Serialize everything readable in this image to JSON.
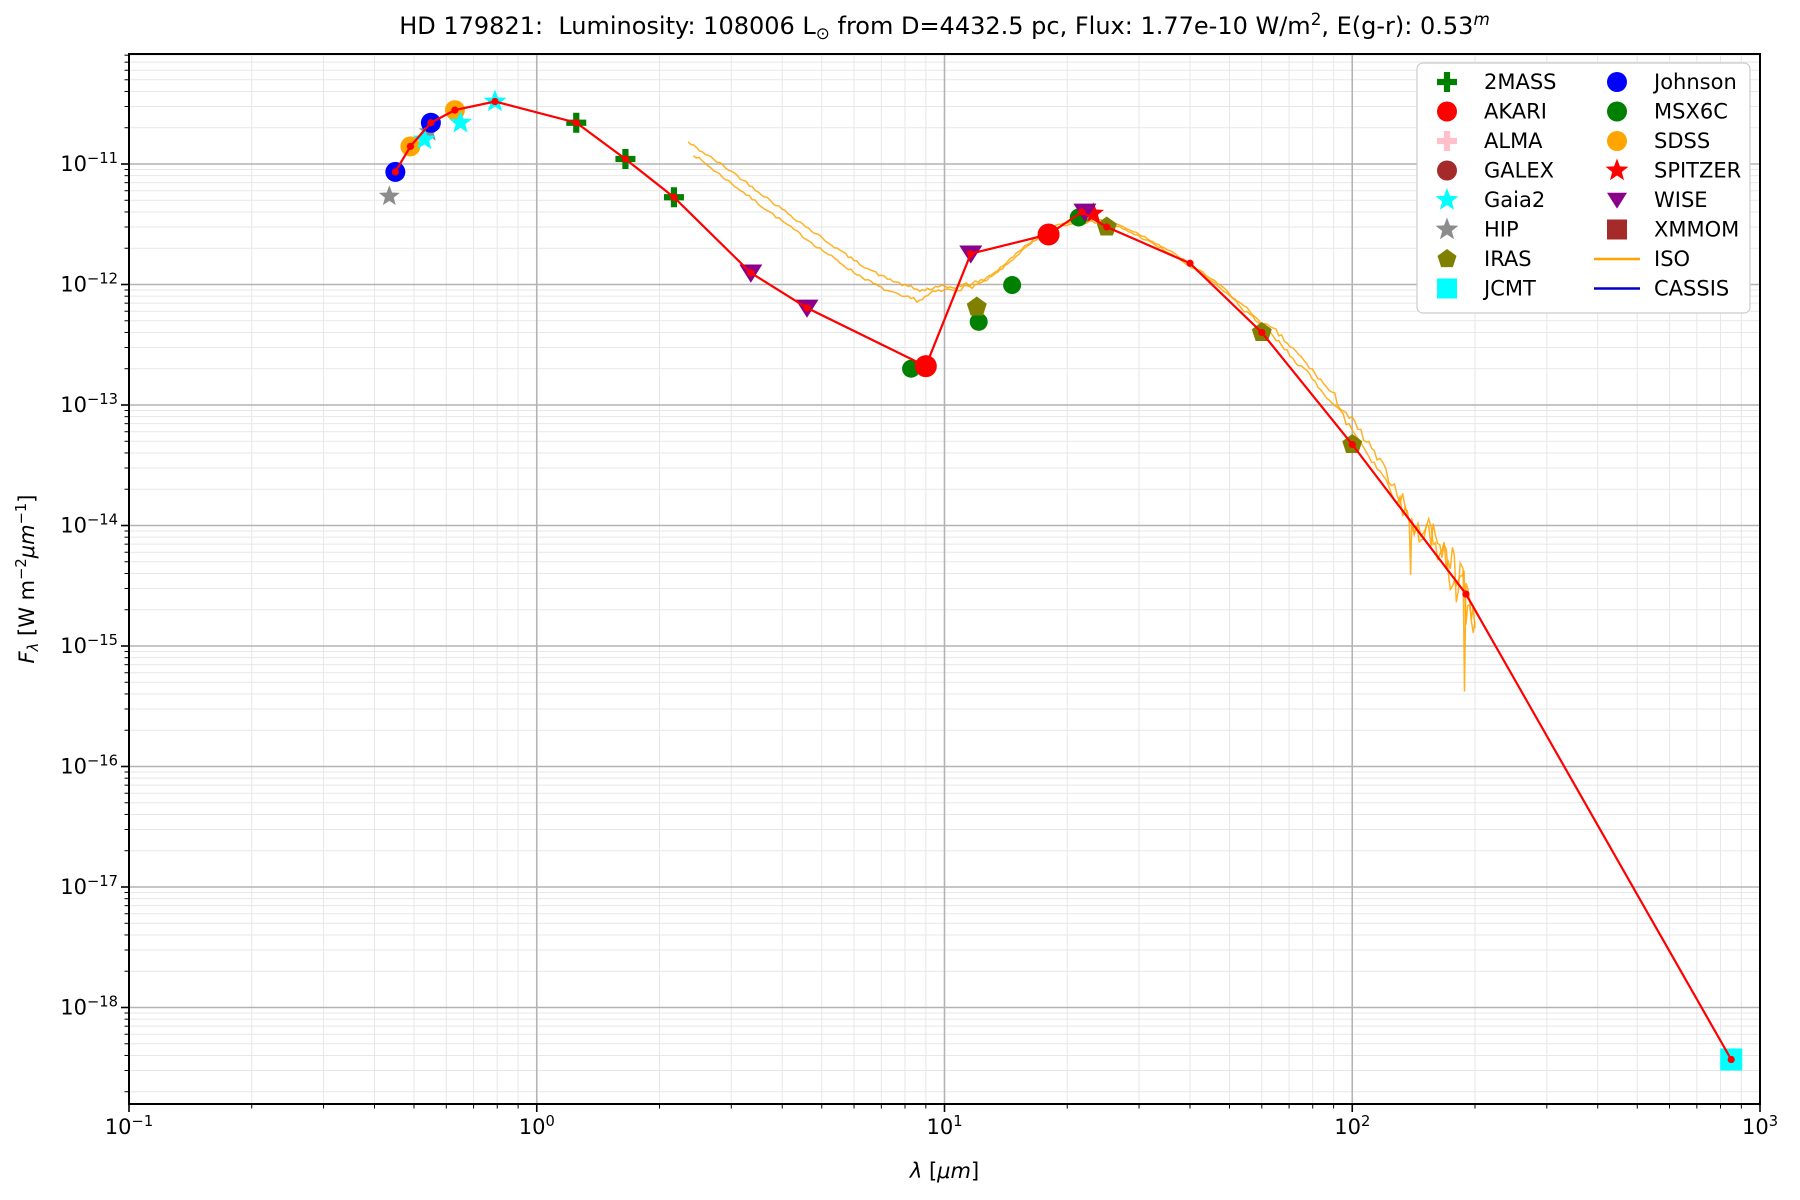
{
  "figure": {
    "title_parts": [
      {
        "t": "HD 179821:  Luminosity: 108006 L"
      },
      {
        "t": "⊙",
        "sub": true
      },
      {
        "t": " from D=4432.5 pc, Flux: 1.77e-10 W/m"
      },
      {
        "t": "2",
        "sup": true
      },
      {
        "t": ", E(g-r): 0.53"
      },
      {
        "t": "m",
        "sup": true,
        "i": true
      }
    ]
  },
  "axes": {
    "xlabel_parts": [
      {
        "t": "λ",
        "i": true
      },
      {
        "t": " ["
      },
      {
        "t": "μm",
        "i": true
      },
      {
        "t": "]"
      }
    ],
    "ylabel_parts": [
      {
        "t": "F",
        "i": true
      },
      {
        "t": "λ",
        "sub": true,
        "i": true
      },
      {
        "t": " [W m"
      },
      {
        "t": "−2",
        "sup": true
      },
      {
        "t": "μm",
        "i": true
      },
      {
        "t": "−1",
        "sup": true
      },
      {
        "t": "]"
      }
    ],
    "x_tick_exponents": [
      -1,
      0,
      1,
      2,
      3
    ],
    "y_tick_exponents": [
      -11,
      -12,
      -13,
      -14,
      -15,
      -16,
      -17,
      -18
    ]
  },
  "legend": {
    "entries": [
      {
        "label": "2MASS",
        "marker": "plus",
        "color": "#008000"
      },
      {
        "label": "AKARI",
        "marker": "circle",
        "color": "#ff0000"
      },
      {
        "label": "ALMA",
        "marker": "plus",
        "color": "#ffc0cb"
      },
      {
        "label": "GALEX",
        "marker": "circle",
        "color": "#a52a2a"
      },
      {
        "label": "Gaia2",
        "marker": "star",
        "color": "#00ffff"
      },
      {
        "label": "HIP",
        "marker": "star",
        "color": "#8c8c8c"
      },
      {
        "label": "IRAS",
        "marker": "pentagon",
        "color": "#808000"
      },
      {
        "label": "JCMT",
        "marker": "square",
        "color": "#00ffff"
      },
      {
        "label": "Johnson",
        "marker": "circle",
        "color": "#0000ff"
      },
      {
        "label": "MSX6C",
        "marker": "circle",
        "color": "#008000"
      },
      {
        "label": "SDSS",
        "marker": "circle",
        "color": "#ffa500"
      },
      {
        "label": "SPITZER",
        "marker": "star",
        "color": "#ff0000"
      },
      {
        "label": "WISE",
        "marker": "tridown",
        "color": "#8b008b"
      },
      {
        "label": "XMMOM",
        "marker": "square",
        "color": "#a52a2a"
      },
      {
        "label": "ISO",
        "marker": "line",
        "color": "#ffa500"
      },
      {
        "label": "CASSIS",
        "marker": "line",
        "color": "#0000cd"
      }
    ]
  },
  "chart_data": {
    "type": "scatter",
    "x_scale": "log",
    "y_scale": "log",
    "xlim": [
      0.1,
      1000
    ],
    "ylim": [
      1.6e-19,
      8.2e-11
    ],
    "grid": true,
    "title": "HD 179821:  Luminosity: 108006 Lsun from D=4432.5 pc, Flux: 1.77e-10 W/m2, E(g-r): 0.53m",
    "xlabel": "lambda [micron]",
    "ylabel": "F_lambda [W m-2 micron-1]",
    "legend_position": "upper right",
    "series": [
      {
        "name": "HIP",
        "marker": "star",
        "color": "#8c8c8c",
        "size": 11,
        "points": [
          [
            0.435,
            5.4e-12
          ],
          [
            0.545,
            1.85e-11
          ]
        ]
      },
      {
        "name": "Johnson",
        "marker": "circle",
        "color": "#0000ff",
        "size": 10,
        "points": [
          [
            0.45,
            8.6e-12
          ],
          [
            0.55,
            2.2e-11
          ]
        ]
      },
      {
        "name": "SDSS",
        "marker": "circle",
        "color": "#ffa500",
        "size": 10,
        "points": [
          [
            0.49,
            1.4e-11
          ],
          [
            0.63,
            2.8e-11
          ]
        ]
      },
      {
        "name": "Gaia2",
        "marker": "star",
        "color": "#00ffff",
        "size": 12,
        "points": [
          [
            0.53,
            1.6e-11
          ],
          [
            0.65,
            2.2e-11
          ],
          [
            0.79,
            3.3e-11
          ]
        ]
      },
      {
        "name": "2MASS",
        "marker": "plus",
        "color": "#008000",
        "size": 10,
        "points": [
          [
            1.25,
            2.2e-11
          ],
          [
            1.65,
            1.1e-11
          ],
          [
            2.17,
            5.3e-12
          ]
        ]
      },
      {
        "name": "MSX6C",
        "marker": "circle",
        "color": "#008000",
        "size": 9,
        "points": [
          [
            8.28,
            2e-13
          ],
          [
            12.13,
            4.9e-13
          ],
          [
            14.65,
            9.9e-13
          ],
          [
            21.34,
            3.6e-12
          ]
        ]
      },
      {
        "name": "AKARI",
        "marker": "circle",
        "color": "#ff0000",
        "size": 11,
        "points": [
          [
            9.0,
            2.1e-13
          ],
          [
            18.0,
            2.6e-12
          ]
        ]
      },
      {
        "name": "IRAS",
        "marker": "pentagon",
        "color": "#808000",
        "size": 10.5,
        "points": [
          [
            12,
            6.5e-13
          ],
          [
            25,
            3e-12
          ],
          [
            60,
            4e-13
          ],
          [
            100,
            4.7e-14
          ]
        ]
      },
      {
        "name": "SPITZER",
        "marker": "star",
        "color": "#ff0000",
        "size": 11,
        "points": [
          [
            23.2,
            3.9e-12
          ]
        ]
      },
      {
        "name": "WISE",
        "marker": "tridown",
        "color": "#8b008b",
        "size": 11.5,
        "points": [
          [
            3.35,
            1.25e-12
          ],
          [
            4.6,
            6.4e-13
          ],
          [
            11.6,
            1.8e-12
          ],
          [
            22.1,
            4e-12
          ]
        ]
      },
      {
        "name": "JCMT",
        "marker": "square",
        "color": "#00ffff",
        "size": 11,
        "points": [
          [
            850,
            3.7e-19
          ]
        ]
      },
      {
        "name": "ALMA",
        "marker": "plus",
        "color": "#ffc0cb",
        "size": 10,
        "points": []
      },
      {
        "name": "GALEX",
        "marker": "circle",
        "color": "#a52a2a",
        "size": 10,
        "points": []
      },
      {
        "name": "XMMOM",
        "marker": "square",
        "color": "#a52a2a",
        "size": 10,
        "points": []
      },
      {
        "name": "CASSIS",
        "marker": "line",
        "color": "#0000cd",
        "points": []
      }
    ],
    "model_line": {
      "name": "SED model line",
      "color": "#ff0000",
      "width": 2.2,
      "dot_radius": 3.6,
      "vertices": [
        [
          0.45,
          8.6e-12
        ],
        [
          0.49,
          1.4e-11
        ],
        [
          0.55,
          2.2e-11
        ],
        [
          0.63,
          2.8e-11
        ],
        [
          0.79,
          3.3e-11
        ],
        [
          1.25,
          2.2e-11
        ],
        [
          1.65,
          1.1e-11
        ],
        [
          2.17,
          5.3e-12
        ],
        [
          3.35,
          1.25e-12
        ],
        [
          4.6,
          6.4e-13
        ],
        [
          9.0,
          2.1e-13
        ],
        [
          11.6,
          1.8e-12
        ],
        [
          18.0,
          2.6e-12
        ],
        [
          21.7,
          4e-12
        ],
        [
          25,
          3e-12
        ],
        [
          40,
          1.5e-12
        ],
        [
          60,
          4e-13
        ],
        [
          100,
          4.7e-14
        ],
        [
          190,
          2.7e-15
        ],
        [
          850,
          3.7e-19
        ]
      ]
    },
    "iso": {
      "name": "ISO spectrum",
      "color": "#ffa500",
      "width": 1.5,
      "noise_amp": [
        [
          8,
          0.012
        ],
        [
          12,
          0.02
        ],
        [
          50,
          0.009
        ],
        [
          90,
          0.022
        ],
        [
          130,
          0.045
        ],
        [
          150,
          0.07
        ],
        [
          175,
          0.13
        ],
        [
          1000000,
          0.18
        ]
      ],
      "traces": [
        {
          "seed": 42,
          "anchors": [
            [
              2.35,
              -10.82
            ],
            [
              3.0,
              -11.06
            ],
            [
              3.8,
              -11.32
            ],
            [
              4.8,
              -11.57
            ],
            [
              6.0,
              -11.8
            ],
            [
              7.0,
              -11.93
            ],
            [
              8.0,
              -12.01
            ],
            [
              8.7,
              -12.05
            ],
            [
              9.5,
              -12.03
            ],
            [
              10.5,
              -12.02
            ],
            [
              11.5,
              -12.0
            ],
            [
              12.5,
              -11.96
            ],
            [
              13.5,
              -11.88
            ],
            [
              14.5,
              -11.79
            ],
            [
              15.5,
              -11.7
            ],
            [
              16.5,
              -11.63
            ],
            [
              17.5,
              -11.57
            ],
            [
              18.5,
              -11.52
            ],
            [
              19.5,
              -11.49
            ],
            [
              21,
              -11.47
            ],
            [
              23,
              -11.46
            ],
            [
              25,
              -11.47
            ],
            [
              27,
              -11.51
            ],
            [
              30,
              -11.58
            ],
            [
              34,
              -11.68
            ],
            [
              38,
              -11.78
            ],
            [
              43,
              -11.9
            ],
            [
              50,
              -12.07
            ],
            [
              57,
              -12.26
            ],
            [
              65,
              -12.46
            ],
            [
              75,
              -12.68
            ],
            [
              85,
              -12.89
            ],
            [
              95,
              -13.1
            ],
            [
              105,
              -13.31
            ],
            [
              115,
              -13.51
            ],
            [
              125,
              -13.71
            ],
            [
              135,
              -13.9
            ],
            [
              142,
              -14.02
            ],
            [
              148,
              -14.1
            ],
            [
              154,
              -14.02
            ],
            [
              160,
              -14.15
            ],
            [
              166,
              -14.28
            ],
            [
              170,
              -14.2
            ],
            [
              174,
              -14.42
            ],
            [
              178,
              -14.3
            ],
            [
              182,
              -14.52
            ],
            [
              186,
              -14.44
            ],
            [
              190,
              -14.65
            ],
            [
              194,
              -14.6
            ],
            [
              198,
              -14.8
            ],
            [
              200,
              -14.85
            ]
          ]
        },
        {
          "seed": 7,
          "anchors": [
            [
              2.42,
              -10.92
            ],
            [
              3.0,
              -11.16
            ],
            [
              3.8,
              -11.42
            ],
            [
              4.8,
              -11.67
            ],
            [
              6.0,
              -11.9
            ],
            [
              7.0,
              -12.03
            ],
            [
              8.0,
              -12.11
            ],
            [
              8.7,
              -12.13
            ],
            [
              9.5,
              -12.06
            ],
            [
              10.5,
              -12.04
            ],
            [
              11.5,
              -12.02
            ],
            [
              12.5,
              -11.98
            ],
            [
              13.5,
              -11.9
            ],
            [
              14.5,
              -11.81
            ],
            [
              15.5,
              -11.72
            ],
            [
              16.5,
              -11.65
            ],
            [
              17.5,
              -11.59
            ],
            [
              18.5,
              -11.54
            ],
            [
              19.5,
              -11.51
            ],
            [
              21,
              -11.49
            ],
            [
              23,
              -11.48
            ],
            [
              25,
              -11.49
            ],
            [
              27,
              -11.53
            ],
            [
              30,
              -11.6
            ],
            [
              34,
              -11.7
            ],
            [
              38,
              -11.8
            ],
            [
              43,
              -11.92
            ],
            [
              50,
              -12.09
            ],
            [
              57,
              -12.28
            ],
            [
              65,
              -12.39
            ],
            [
              75,
              -12.61
            ],
            [
              85,
              -12.82
            ],
            [
              95,
              -13.03
            ],
            [
              105,
              -13.24
            ],
            [
              115,
              -13.44
            ],
            [
              125,
              -13.64
            ],
            [
              135,
              -13.83
            ],
            [
              138,
              -13.95
            ],
            [
              139,
              -14.45
            ],
            [
              140,
              -13.97
            ],
            [
              145,
              -14.05
            ],
            [
              152,
              -13.98
            ],
            [
              158,
              -14.1
            ],
            [
              164,
              -14.23
            ],
            [
              168,
              -14.15
            ],
            [
              172,
              -14.37
            ],
            [
              176,
              -14.25
            ],
            [
              180,
              -14.47
            ],
            [
              184,
              -14.39
            ],
            [
              187,
              -14.5
            ],
            [
              188.5,
              -15.3
            ],
            [
              190,
              -14.6
            ],
            [
              194,
              -14.55
            ],
            [
              198,
              -14.75
            ],
            [
              200,
              -14.8
            ]
          ]
        }
      ]
    }
  },
  "style": {
    "grid_major_color": "#b3b3b3",
    "grid_minor_color": "#e7e7e7",
    "frame_color": "#000000",
    "background": "#ffffff",
    "legend_border": "#cccccc"
  }
}
